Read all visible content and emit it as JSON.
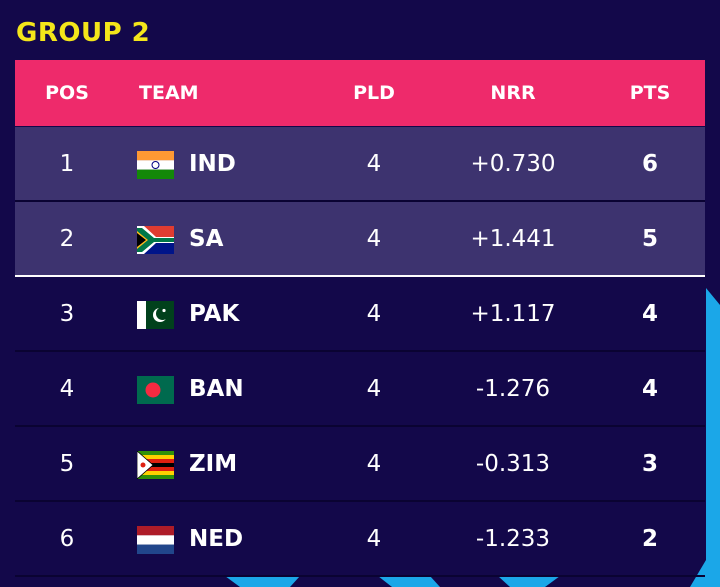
{
  "title": "GROUP 2",
  "table": {
    "header": [
      "POS",
      "TEAM",
      "PLD",
      "NRR",
      "PTS"
    ],
    "rows": [
      [
        1,
        "IND",
        4,
        "+0.730",
        6
      ],
      [
        2,
        "SA",
        4,
        "+1.441",
        5
      ],
      [
        3,
        "PAK",
        4,
        "+1.117",
        4
      ],
      [
        4,
        "BAN",
        4,
        "-1.276",
        4
      ],
      [
        5,
        "ZIM",
        4,
        "-0.313",
        3
      ],
      [
        6,
        "NED",
        4,
        "-1.233",
        2
      ]
    ]
  }
}
